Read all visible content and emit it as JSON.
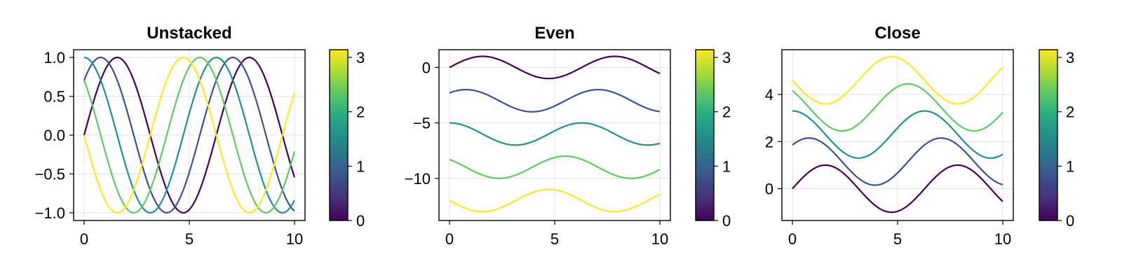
{
  "chart_data": [
    {
      "type": "line",
      "title": "Unstacked",
      "xlabel": "",
      "ylabel": "",
      "xlim": [
        -0.5,
        10.5
      ],
      "ylim": [
        -1.1,
        1.1
      ],
      "xticks": [
        0,
        5,
        10
      ],
      "xtick_labels": [
        "0",
        "5",
        "10"
      ],
      "yticks": [
        -1.0,
        -0.5,
        0.0,
        0.5,
        1.0
      ],
      "ytick_labels": [
        "−1.0",
        "−0.5",
        "0.0",
        "0.5",
        "1.0"
      ],
      "grid": true,
      "function": "y = sin(x + phase) + offset",
      "series": [
        {
          "phase": 0.0,
          "offset": 0,
          "color": "#440154"
        },
        {
          "phase": 0.785,
          "offset": 0,
          "color": "#3b528b"
        },
        {
          "phase": 1.571,
          "offset": 0,
          "color": "#21908c"
        },
        {
          "phase": 2.356,
          "offset": 0,
          "color": "#5ec962"
        },
        {
          "phase": 3.142,
          "offset": 0,
          "color": "#fde725"
        }
      ],
      "colorbar": {
        "range": [
          0,
          3.1416
        ],
        "ticks": [
          0,
          1,
          2,
          3
        ],
        "tick_labels": [
          "0",
          "1",
          "2",
          "3"
        ],
        "colormap": "viridis"
      }
    },
    {
      "type": "line",
      "title": "Even",
      "xlabel": "",
      "ylabel": "",
      "xlim": [
        -0.5,
        10.5
      ],
      "ylim": [
        -13.8,
        1.6
      ],
      "xticks": [
        0,
        5,
        10
      ],
      "xtick_labels": [
        "0",
        "5",
        "10"
      ],
      "yticks": [
        0,
        -5,
        -10
      ],
      "ytick_labels": [
        "0",
        "−5",
        "−10"
      ],
      "grid": true,
      "function": "y = sin(x + phase) + offset",
      "series": [
        {
          "phase": 0.0,
          "offset": 0,
          "color": "#440154"
        },
        {
          "phase": 0.785,
          "offset": -3,
          "color": "#3b528b"
        },
        {
          "phase": 1.571,
          "offset": -6,
          "color": "#21908c"
        },
        {
          "phase": 2.356,
          "offset": -9,
          "color": "#5ec962"
        },
        {
          "phase": 3.142,
          "offset": -12,
          "color": "#fde725"
        }
      ],
      "colorbar": {
        "range": [
          0,
          3.1416
        ],
        "ticks": [
          0,
          1,
          2,
          3
        ],
        "tick_labels": [
          "0",
          "1",
          "2",
          "3"
        ],
        "colormap": "viridis"
      }
    },
    {
      "type": "line",
      "title": "Close",
      "xlabel": "",
      "ylabel": "",
      "xlim": [
        -0.5,
        10.5
      ],
      "ylim": [
        -1.35,
        5.9
      ],
      "xticks": [
        0,
        5,
        10
      ],
      "xtick_labels": [
        "0",
        "5",
        "10"
      ],
      "yticks": [
        0,
        2,
        4
      ],
      "ytick_labels": [
        "0",
        "2",
        "4"
      ],
      "grid": true,
      "function": "y = sin(x + phase) + offset",
      "series": [
        {
          "phase": 0.0,
          "offset": 0,
          "color": "#440154"
        },
        {
          "phase": 0.785,
          "offset": 1.15,
          "color": "#3b528b"
        },
        {
          "phase": 1.571,
          "offset": 2.3,
          "color": "#21908c"
        },
        {
          "phase": 2.356,
          "offset": 3.45,
          "color": "#5ec962"
        },
        {
          "phase": 3.142,
          "offset": 4.6,
          "color": "#fde725"
        }
      ],
      "colorbar": {
        "range": [
          0,
          3.1416
        ],
        "ticks": [
          0,
          1,
          2,
          3
        ],
        "tick_labels": [
          "0",
          "1",
          "2",
          "3"
        ],
        "colormap": "viridis"
      }
    }
  ]
}
